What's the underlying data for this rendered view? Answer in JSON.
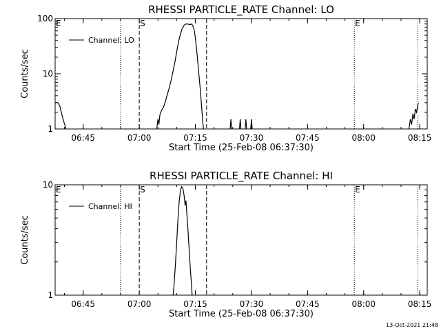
{
  "footer": {
    "timestamp": "13-Oct-2021 21:48"
  },
  "chart_data": [
    {
      "type": "line",
      "scale": "log",
      "title": "RHESSI PARTICLE_RATE Channel: LO",
      "xlabel": "Start Time (25-Feb-08 06:37:30)",
      "ylabel": "Counts/sec",
      "xlim": [
        "06:37:30",
        "08:17:00"
      ],
      "ylim": [
        1,
        100
      ],
      "x_ticks": [
        "06:45",
        "07:00",
        "07:15",
        "07:30",
        "07:45",
        "08:00",
        "08:15"
      ],
      "y_ticks": [
        {
          "value": 1,
          "label": "1"
        },
        {
          "value": 10,
          "label": "10"
        },
        {
          "value": 100,
          "label": "100"
        }
      ],
      "legend": {
        "label": "Channel: LO",
        "position": "top-left"
      },
      "markers": [
        {
          "time": "06:55:00",
          "style": "dotted",
          "label": ""
        },
        {
          "time": "07:00:00",
          "style": "dashed",
          "label": "S"
        },
        {
          "time": "07:18:00",
          "style": "dashed",
          "label": ""
        },
        {
          "time": "07:57:30",
          "style": "dotted",
          "label": "E"
        },
        {
          "time": "08:14:30",
          "style": "dotted",
          "label": ""
        }
      ],
      "corner_labels": [
        {
          "text": "E",
          "position": "top-left"
        }
      ],
      "series": [
        {
          "segments": [
            [
              [
                "06:37:30",
                3.0
              ],
              [
                "06:38:15",
                3.0
              ],
              [
                "06:38:45",
                2.6
              ],
              [
                "06:39:15",
                1.9
              ],
              [
                "06:39:45",
                1.4
              ],
              [
                "06:40:15",
                1.1
              ],
              [
                "06:40:30",
                0.9
              ]
            ],
            [
              [
                "07:04:30",
                0.9
              ],
              [
                "07:04:45",
                1.1
              ],
              [
                "07:05:00",
                1.5
              ],
              [
                "07:05:15",
                1.2
              ],
              [
                "07:05:30",
                1.8
              ],
              [
                "07:06:00",
                2.2
              ],
              [
                "07:06:30",
                2.5
              ],
              [
                "07:07:00",
                3.2
              ],
              [
                "07:07:30",
                4.2
              ],
              [
                "07:08:00",
                5.5
              ],
              [
                "07:08:30",
                7.5
              ],
              [
                "07:09:00",
                11
              ],
              [
                "07:09:30",
                16
              ],
              [
                "07:10:00",
                25
              ],
              [
                "07:10:30",
                38
              ],
              [
                "07:11:00",
                52
              ],
              [
                "07:11:30",
                66
              ],
              [
                "07:12:00",
                76
              ],
              [
                "07:12:30",
                80
              ],
              [
                "07:13:00",
                80
              ],
              [
                "07:13:30",
                78
              ],
              [
                "07:14:00",
                80
              ],
              [
                "07:14:20",
                74
              ],
              [
                "07:14:40",
                63
              ],
              [
                "07:15:00",
                45
              ],
              [
                "07:15:20",
                28
              ],
              [
                "07:15:40",
                16
              ],
              [
                "07:16:00",
                9
              ],
              [
                "07:16:20",
                5
              ],
              [
                "07:16:40",
                2.5
              ],
              [
                "07:17:00",
                1.3
              ],
              [
                "07:17:15",
                0.9
              ]
            ],
            [
              [
                "07:24:15",
                0.9
              ],
              [
                "07:24:30",
                1.5
              ],
              [
                "07:24:45",
                0.9
              ]
            ],
            [
              [
                "07:26:45",
                0.9
              ],
              [
                "07:27:00",
                1.5
              ],
              [
                "07:27:15",
                0.9
              ]
            ],
            [
              [
                "07:28:15",
                0.9
              ],
              [
                "07:28:30",
                1.5
              ],
              [
                "07:28:45",
                0.9
              ]
            ],
            [
              [
                "07:29:45",
                0.9
              ],
              [
                "07:30:00",
                1.5
              ],
              [
                "07:30:15",
                0.9
              ]
            ],
            [
              [
                "08:12:00",
                0.9
              ],
              [
                "08:12:30",
                1.5
              ],
              [
                "08:12:50",
                1.2
              ],
              [
                "08:13:10",
                1.9
              ],
              [
                "08:13:30",
                1.5
              ],
              [
                "08:13:50",
                2.3
              ],
              [
                "08:14:10",
                2.0
              ],
              [
                "08:14:30",
                2.8
              ],
              [
                "08:14:45",
                2.9
              ]
            ]
          ]
        }
      ]
    },
    {
      "type": "line",
      "scale": "log",
      "title": "RHESSI PARTICLE_RATE Channel: HI",
      "xlabel": "Start Time (25-Feb-08 06:37:30)",
      "ylabel": "Counts/sec",
      "xlim": [
        "06:37:30",
        "08:17:00"
      ],
      "ylim": [
        1,
        10
      ],
      "x_ticks": [
        "06:45",
        "07:00",
        "07:15",
        "07:30",
        "07:45",
        "08:00",
        "08:15"
      ],
      "y_ticks": [
        {
          "value": 1,
          "label": "1"
        },
        {
          "value": 10,
          "label": "10"
        }
      ],
      "legend": {
        "label": "Channel: HI",
        "position": "top-left"
      },
      "markers": [
        {
          "time": "06:55:00",
          "style": "dotted",
          "label": ""
        },
        {
          "time": "07:00:00",
          "style": "dashed",
          "label": "S"
        },
        {
          "time": "07:18:00",
          "style": "dashed",
          "label": ""
        },
        {
          "time": "07:57:30",
          "style": "dotted",
          "label": "E"
        },
        {
          "time": "08:14:30",
          "style": "dotted",
          "label": ""
        }
      ],
      "corner_labels": [
        {
          "text": "E",
          "position": "top-left"
        }
      ],
      "series": [
        {
          "segments": [
            [
              [
                "07:09:00",
                0.95
              ],
              [
                "07:09:20",
                1.3
              ],
              [
                "07:09:40",
                1.9
              ],
              [
                "07:10:00",
                3.0
              ],
              [
                "07:10:20",
                4.8
              ],
              [
                "07:10:40",
                7.0
              ],
              [
                "07:11:00",
                8.8
              ],
              [
                "07:11:20",
                9.6
              ],
              [
                "07:11:40",
                9.3
              ],
              [
                "07:12:00",
                8.0
              ],
              [
                "07:12:15",
                6.5
              ],
              [
                "07:12:30",
                7.2
              ],
              [
                "07:12:40",
                5.8
              ],
              [
                "07:13:00",
                4.0
              ],
              [
                "07:13:20",
                2.6
              ],
              [
                "07:13:40",
                1.7
              ],
              [
                "07:14:00",
                1.2
              ],
              [
                "07:14:10",
                0.95
              ]
            ]
          ]
        }
      ]
    }
  ]
}
